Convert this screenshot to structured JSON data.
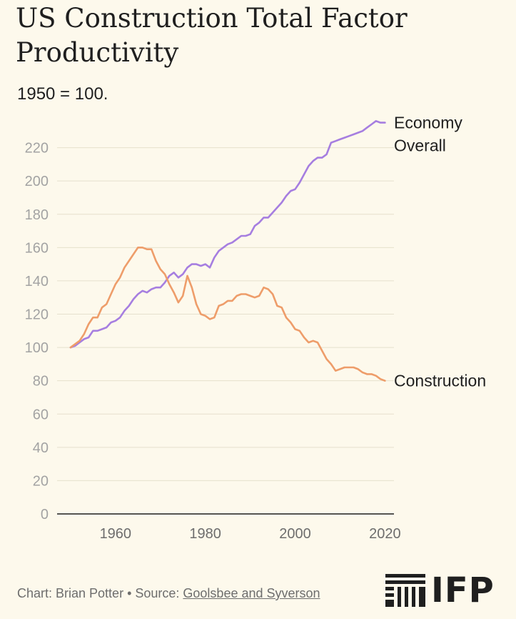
{
  "chart_data": {
    "type": "line",
    "title": "US Construction Total Factor Productivity",
    "subtitle": "1950 = 100.",
    "xlabel": "",
    "ylabel": "",
    "xlim": [
      1947,
      2022
    ],
    "ylim": [
      0,
      240
    ],
    "y_ticks": [
      0,
      20,
      40,
      60,
      80,
      100,
      120,
      140,
      160,
      180,
      200,
      220
    ],
    "x_ticks": [
      1960,
      1980,
      2000,
      2020
    ],
    "grid": true,
    "colors": {
      "economy": "#a67ee0",
      "construction": "#ee9d6a"
    },
    "x": [
      1950,
      1951,
      1952,
      1953,
      1954,
      1955,
      1956,
      1957,
      1958,
      1959,
      1960,
      1961,
      1962,
      1963,
      1964,
      1965,
      1966,
      1967,
      1968,
      1969,
      1970,
      1971,
      1972,
      1973,
      1974,
      1975,
      1976,
      1977,
      1978,
      1979,
      1980,
      1981,
      1982,
      1983,
      1984,
      1985,
      1986,
      1987,
      1988,
      1989,
      1990,
      1991,
      1992,
      1993,
      1994,
      1995,
      1996,
      1997,
      1998,
      1999,
      2000,
      2001,
      2002,
      2003,
      2004,
      2005,
      2006,
      2007,
      2008,
      2009,
      2010,
      2011,
      2012,
      2013,
      2014,
      2015,
      2016,
      2017,
      2018,
      2019,
      2020
    ],
    "series": [
      {
        "name": "Economy Overall",
        "label_lines": [
          "Economy",
          "Overall"
        ],
        "values": [
          100,
          101,
          103,
          105,
          106,
          110,
          110,
          111,
          112,
          115,
          116,
          118,
          122,
          125,
          129,
          132,
          134,
          133,
          135,
          136,
          136,
          139,
          143,
          145,
          142,
          144,
          148,
          150,
          150,
          149,
          150,
          148,
          154,
          158,
          160,
          162,
          163,
          165,
          167,
          167,
          168,
          173,
          175,
          178,
          178,
          181,
          184,
          187,
          191,
          194,
          195,
          199,
          204,
          209,
          212,
          214,
          214,
          216,
          223,
          224,
          225,
          226,
          227,
          228,
          229,
          230,
          232,
          234,
          236,
          235,
          235
        ]
      },
      {
        "name": "Construction",
        "label_lines": [
          "Construction"
        ],
        "values": [
          100,
          102,
          104,
          108,
          114,
          118,
          118,
          124,
          126,
          132,
          138,
          142,
          148,
          152,
          156,
          160,
          160,
          159,
          159,
          152,
          147,
          144,
          138,
          133,
          127,
          131,
          143,
          136,
          126,
          120,
          119,
          117,
          118,
          125,
          126,
          128,
          128,
          131,
          132,
          132,
          131,
          130,
          131,
          136,
          135,
          132,
          125,
          124,
          118,
          115,
          111,
          110,
          106,
          103,
          104,
          103,
          98,
          93,
          90,
          86,
          87,
          88,
          88,
          88,
          87,
          85,
          84,
          84,
          83,
          81,
          80
        ]
      }
    ]
  },
  "footer": {
    "credit": "Chart: Brian Potter • Source: ",
    "source_link": "Goolsbee and Syverson"
  },
  "logo": {
    "text": "IFP"
  }
}
